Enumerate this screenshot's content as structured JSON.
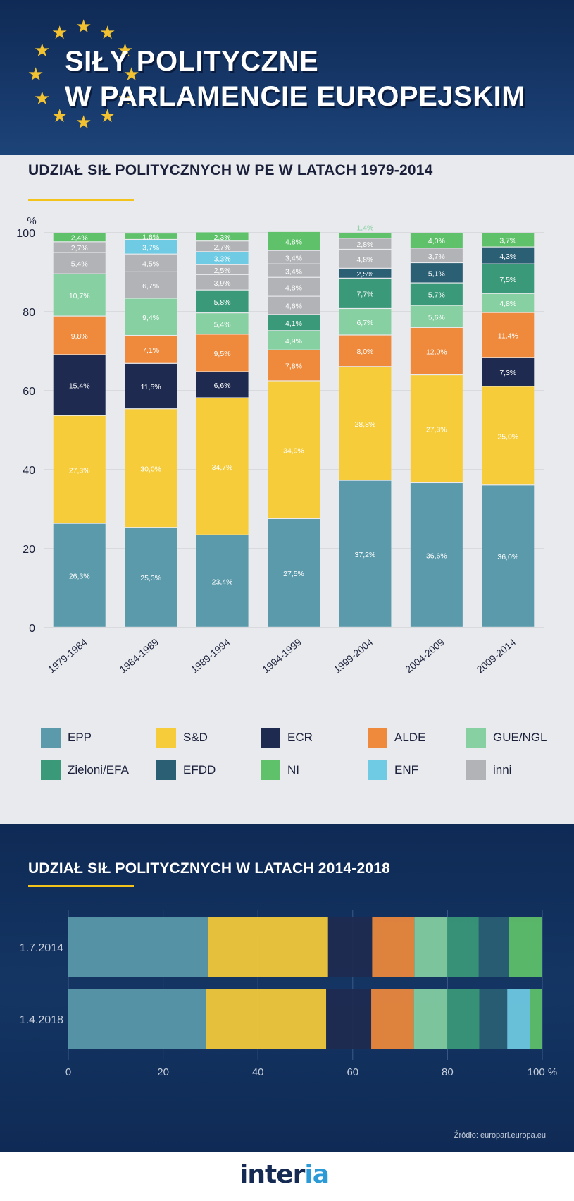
{
  "header": {
    "title_line1": "SIŁY POLITYCZNE",
    "title_line2": "W PARLAMENCIE EUROPEJSKIM"
  },
  "colors": {
    "EPP": "#5b9aab",
    "S&D": "#f6cc3a",
    "ECR": "#1e2a50",
    "ALDE": "#ef8a3c",
    "GUE/NGL": "#86d0a2",
    "Zieloni/EFA": "#3a9978",
    "EFDD": "#2a5f74",
    "NI": "#5fc26a",
    "ENF": "#6fcbe3",
    "inni": "#b2b3b6"
  },
  "chart_data": [
    {
      "type": "bar",
      "stacked": true,
      "title": "UDZIAŁ SIŁ POLITYCZNYCH W PE W LATACH 1979-2014",
      "ylabel": "%",
      "ylim": [
        0,
        100
      ],
      "yticks": [
        "0",
        "20",
        "40",
        "60",
        "80",
        "100"
      ],
      "categories": [
        "1979-1984",
        "1984-1989",
        "1989-1994",
        "1994-1999",
        "1999-2004",
        "2004-2009",
        "2009-2014"
      ],
      "series": [
        {
          "name": "EPP",
          "values": [
            26.3,
            25.3,
            23.4,
            27.5,
            37.2,
            36.6,
            36.0
          ],
          "labels": [
            "26,3%",
            "25,3%",
            "23,4%",
            "27,5%",
            "37,2%",
            "36,6%",
            "36,0%"
          ]
        },
        {
          "name": "S&D",
          "values": [
            27.3,
            30.0,
            34.7,
            34.9,
            28.8,
            27.3,
            25.0
          ],
          "labels": [
            "27,3%",
            "30,0%",
            "34,7%",
            "34,9%",
            "28,8%",
            "27,3%",
            "25,0%"
          ]
        },
        {
          "name": "ECR",
          "values": [
            15.4,
            11.5,
            6.6,
            0,
            0,
            0,
            7.3
          ],
          "labels": [
            "15,4%",
            "11,5%",
            "6,6%",
            "",
            "",
            "",
            "7,3%"
          ]
        },
        {
          "name": "ALDE",
          "values": [
            9.8,
            7.1,
            9.5,
            7.8,
            8.0,
            12.0,
            11.4
          ],
          "labels": [
            "9,8%",
            "7,1%",
            "9,5%",
            "7,8%",
            "8,0%",
            "12,0%",
            "11,4%"
          ]
        },
        {
          "name": "GUE/NGL",
          "values": [
            10.7,
            9.4,
            5.4,
            4.9,
            6.7,
            5.6,
            4.8
          ],
          "labels": [
            "10,7%",
            "9,4%",
            "5,4%",
            "4,9%",
            "6,7%",
            "5,6%",
            "4,8%"
          ]
        },
        {
          "name": "Zieloni/EFA",
          "values": [
            0,
            0,
            5.8,
            4.1,
            7.7,
            5.7,
            7.5
          ],
          "labels": [
            "",
            "",
            "5,8%",
            "4,1%",
            "7,7%",
            "5,7%",
            "7,5%"
          ]
        },
        {
          "name": "EFDD",
          "values": [
            0,
            0,
            0,
            0,
            2.5,
            5.1,
            4.3
          ],
          "labels": [
            "",
            "",
            "",
            "",
            "2,5%",
            "5,1%",
            "4,3%"
          ]
        },
        {
          "name": "inni_a",
          "legend": "inni",
          "values": [
            5.4,
            6.7,
            3.9,
            4.6,
            4.8,
            3.7,
            0
          ],
          "labels": [
            "5,4%",
            "6,7%",
            "3,9%",
            "4,6%",
            "4,8%",
            "3,7%",
            ""
          ]
        },
        {
          "name": "inni_b",
          "legend": "inni",
          "values": [
            2.7,
            4.5,
            2.5,
            4.8,
            2.8,
            0,
            0
          ],
          "labels": [
            "2,7%",
            "4,5%",
            "2,5%",
            "4,8%",
            "2,8%",
            "",
            ""
          ]
        },
        {
          "name": "ENF",
          "values": [
            0,
            3.7,
            3.3,
            0,
            0,
            0,
            0
          ],
          "labels": [
            "",
            "3,7%",
            "3,3%",
            "",
            "",
            "",
            ""
          ]
        },
        {
          "name": "inni_c",
          "legend": "inni",
          "values": [
            0,
            0,
            2.7,
            3.4,
            0,
            0,
            0
          ],
          "labels": [
            "",
            "",
            "2,7%",
            "3,4%",
            "",
            "",
            ""
          ]
        },
        {
          "name": "inni_d",
          "legend": "inni",
          "values": [
            0,
            0,
            0,
            3.4,
            0,
            0,
            0
          ],
          "labels": [
            "",
            "",
            "",
            "3,4%",
            "",
            "",
            ""
          ]
        },
        {
          "name": "NI",
          "values": [
            2.4,
            1.6,
            2.3,
            4.8,
            1.4,
            4.0,
            3.7
          ],
          "labels": [
            "2,4%",
            "1,6%",
            "2,3%",
            "4,8%",
            "1,4%",
            "4,0%",
            "3,7%"
          ]
        }
      ],
      "legend": [
        "EPP",
        "S&D",
        "ECR",
        "ALDE",
        "GUE/NGL",
        "Zieloni/EFA",
        "EFDD",
        "NI",
        "ENF",
        "inni"
      ]
    },
    {
      "type": "bar",
      "orientation": "horizontal",
      "stacked": true,
      "title": "UDZIAŁ SIŁ POLITYCZNYCH W LATACH 2014-2018",
      "xlim": [
        0,
        100
      ],
      "xticks": [
        "0",
        "20",
        "40",
        "60",
        "80",
        "100 %"
      ],
      "categories": [
        "1.7.2014",
        "1.4.2018"
      ],
      "series": [
        {
          "name": "EPP",
          "values": [
            29.4,
            29.1
          ]
        },
        {
          "name": "S&D",
          "values": [
            25.4,
            25.3
          ]
        },
        {
          "name": "ECR",
          "values": [
            9.3,
            9.5
          ]
        },
        {
          "name": "ALDE",
          "values": [
            8.9,
            9.0
          ]
        },
        {
          "name": "GUE/NGL",
          "values": [
            6.9,
            6.9
          ]
        },
        {
          "name": "Zieloni/EFA",
          "values": [
            6.7,
            6.9
          ]
        },
        {
          "name": "EFDD",
          "values": [
            6.4,
            5.9
          ]
        },
        {
          "name": "ENF",
          "values": [
            0,
            4.8
          ]
        },
        {
          "name": "NI",
          "values": [
            7.0,
            2.6
          ]
        }
      ]
    }
  ],
  "source": "Źródło: europarl.europa.eu",
  "logo": {
    "main": "inter",
    "accent": "ia"
  }
}
